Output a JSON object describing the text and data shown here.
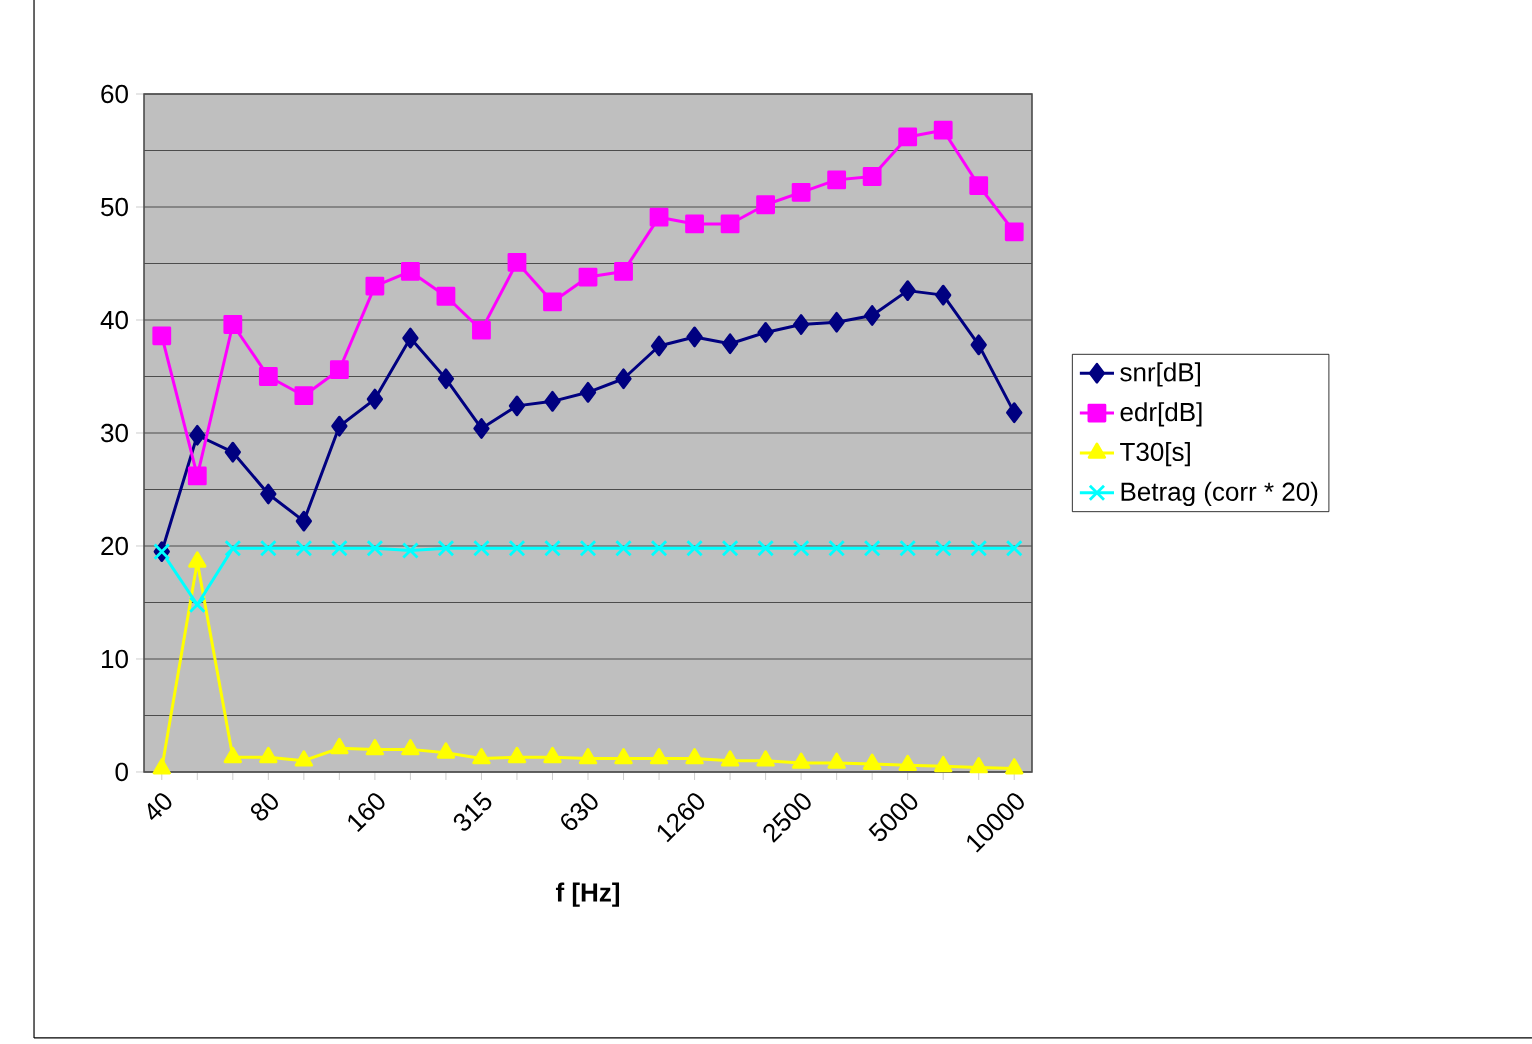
{
  "chart_data": {
    "type": "line",
    "xlabel": "f [Hz]",
    "categories": [
      "40",
      null,
      null,
      "80",
      null,
      null,
      "160",
      null,
      null,
      "315",
      null,
      null,
      "630",
      null,
      null,
      "1260",
      null,
      null,
      "2500",
      null,
      null,
      "5000",
      null,
      null,
      "10000"
    ],
    "series": [
      {
        "name": "snr[dB]",
        "color": "#000080",
        "marker": "diamond",
        "values": [
          19.5,
          29.8,
          28.3,
          24.6,
          22.2,
          30.6,
          33.0,
          38.4,
          34.8,
          30.4,
          32.4,
          32.8,
          33.6,
          34.8,
          37.7,
          38.5,
          37.9,
          38.9,
          39.6,
          39.8,
          40.4,
          42.6,
          42.2,
          37.8,
          31.8
        ]
      },
      {
        "name": "edr[dB]",
        "color": "#ff00ff",
        "marker": "square",
        "values": [
          38.6,
          26.2,
          39.6,
          35.0,
          33.3,
          35.6,
          43.0,
          44.3,
          42.1,
          39.1,
          45.1,
          41.6,
          43.8,
          44.3,
          49.1,
          48.5,
          48.5,
          50.2,
          51.3,
          52.4,
          52.7,
          56.2,
          56.8,
          51.9,
          47.8
        ]
      },
      {
        "name": "T30[s]",
        "color": "#ffff00",
        "marker": "triangle",
        "values": [
          0.3,
          18.6,
          1.3,
          1.3,
          1.0,
          2.1,
          2.0,
          2.0,
          1.7,
          1.2,
          1.3,
          1.3,
          1.2,
          1.2,
          1.2,
          1.2,
          1.0,
          1.0,
          0.8,
          0.8,
          0.7,
          0.6,
          0.5,
          0.4,
          0.3
        ]
      },
      {
        "name": "Betrag (corr * 20)",
        "color": "#00ffff",
        "marker": "cross",
        "values": [
          19.5,
          14.8,
          19.8,
          19.8,
          19.8,
          19.8,
          19.8,
          19.6,
          19.8,
          19.8,
          19.8,
          19.8,
          19.8,
          19.8,
          19.8,
          19.8,
          19.8,
          19.8,
          19.8,
          19.8,
          19.8,
          19.8,
          19.8,
          19.8,
          19.8
        ]
      }
    ],
    "ylim": [
      0,
      60
    ],
    "yticks": [
      0,
      10,
      20,
      30,
      40,
      50,
      60
    ],
    "grid": "y",
    "legend": "right",
    "line_style": "solid"
  }
}
